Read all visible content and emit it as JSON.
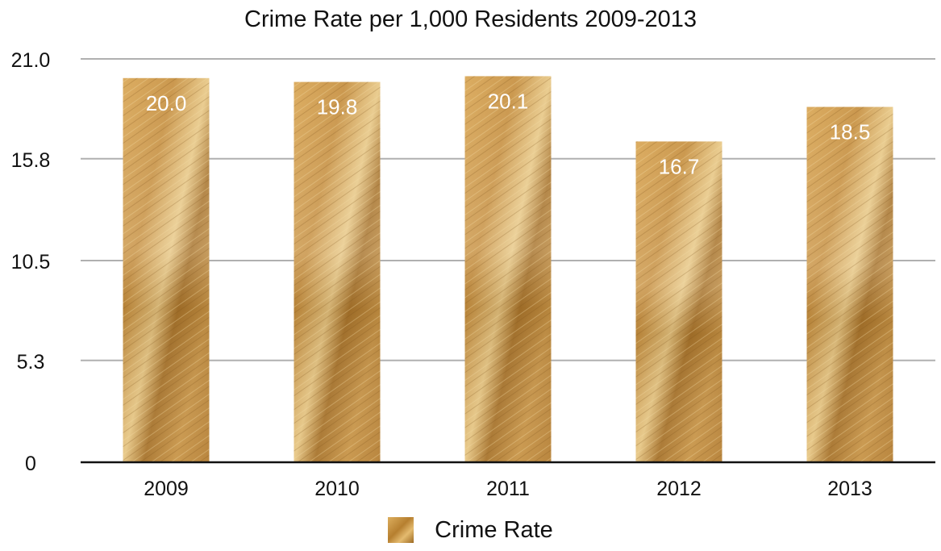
{
  "chart_data": {
    "type": "bar",
    "title": "Crime Rate per 1,000 Residents 2009-2013",
    "categories": [
      "2009",
      "2010",
      "2011",
      "2012",
      "2013"
    ],
    "series": [
      {
        "name": "Crime Rate",
        "values": [
          20.0,
          19.8,
          20.1,
          16.7,
          18.5
        ]
      }
    ],
    "data_labels": [
      "20.0",
      "19.8",
      "20.1",
      "16.7",
      "18.5"
    ],
    "y_ticks": [
      "0",
      "5.3",
      "10.5",
      "15.8",
      "21.0"
    ],
    "ylim": [
      0,
      21.0
    ],
    "xlabel": "",
    "ylabel": "",
    "grid": true,
    "legend_position": "bottom",
    "colors": {
      "bar": "#c18a3c",
      "bar_light": "#e6c07a",
      "bar_dark": "#9a6824",
      "grid": "#b0b0b0",
      "axis": "#111111",
      "label_text": "#ffffff"
    }
  }
}
